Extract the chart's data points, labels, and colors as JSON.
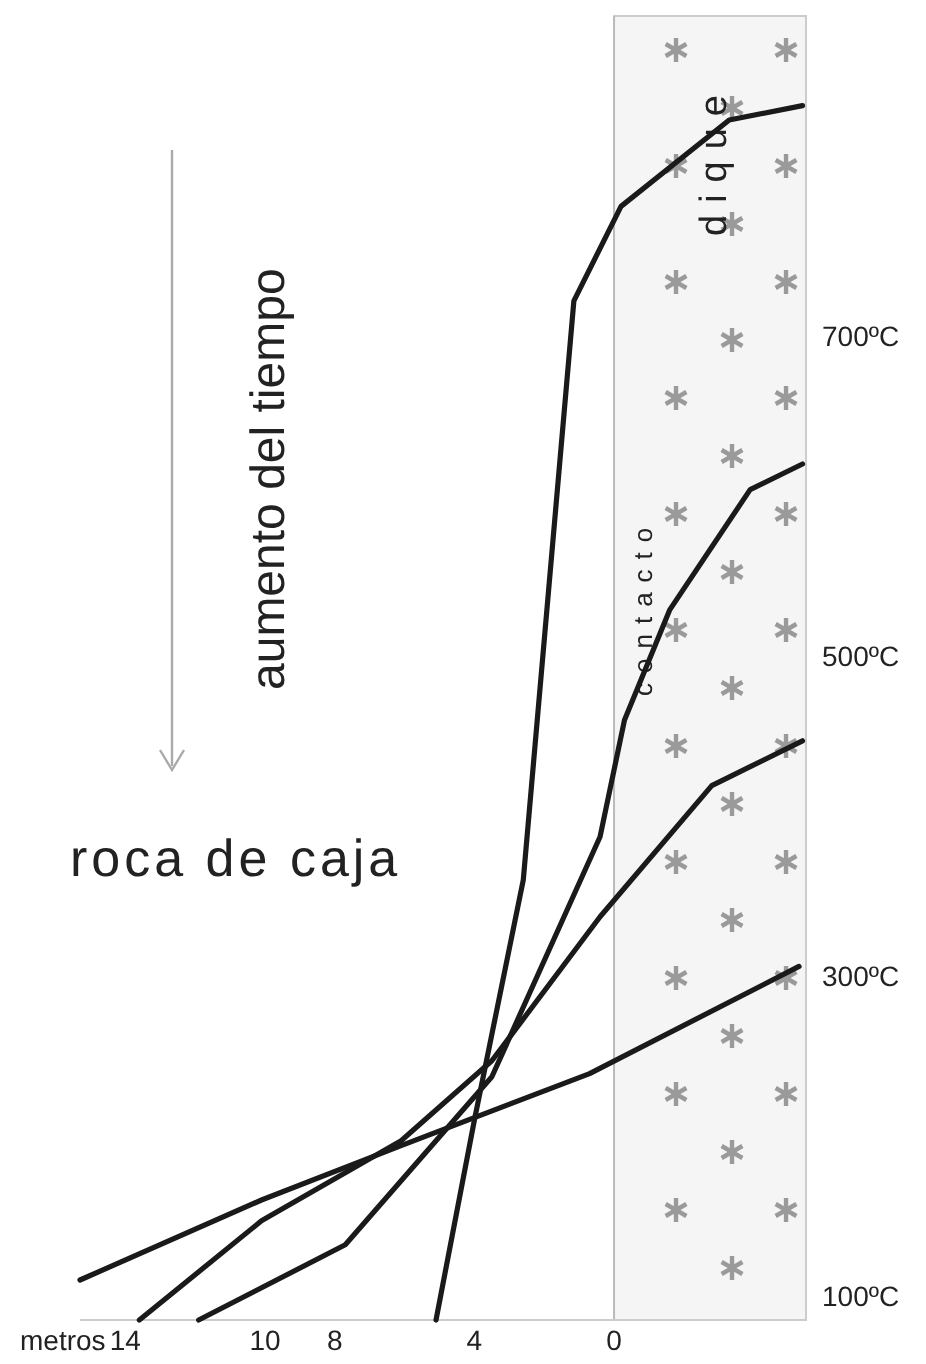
{
  "chart_data": {
    "type": "line",
    "xlabel": "metros",
    "xlim": [
      15.3,
      -5.5
    ],
    "xticks": [
      14,
      10,
      8,
      4,
      0
    ],
    "ylim": [
      85,
      900
    ],
    "yticks": [
      {
        "value": 100,
        "label": "100ºC"
      },
      {
        "value": 300,
        "label": "300ºC"
      },
      {
        "value": 500,
        "label": "500ºC"
      },
      {
        "value": 700,
        "label": "700ºC"
      }
    ],
    "grid": false,
    "marker": "none",
    "line_style": "solid",
    "series": [
      {
        "color": "#1a1a1a",
        "x": [
          15.3,
          10.1,
          6.1,
          0.7,
          -5.3
        ],
        "values": [
          110,
          160,
          194,
          239,
          306
        ]
      },
      {
        "color": "#1a1a1a",
        "x": [
          13.6,
          10.1,
          6.1,
          3.5,
          0.4,
          -2.8,
          -5.4
        ],
        "values": [
          85,
          147,
          197,
          247,
          337,
          419,
          447
        ]
      },
      {
        "color": "#1a1a1a",
        "x": [
          11.9,
          7.7,
          3.5,
          0.4,
          -0.3,
          -1.6,
          -3.9,
          -5.4
        ],
        "values": [
          85,
          132,
          237,
          387,
          460,
          529,
          604,
          620
        ]
      },
      {
        "color": "#1a1a1a",
        "x": [
          5.1,
          4.0,
          2.6,
          1.15,
          -0.2,
          -3.3,
          -5.4
        ],
        "values": [
          85,
          210,
          360,
          722,
          781,
          835,
          844
        ]
      }
    ],
    "bands": [
      {
        "axis": "x",
        "from": 0,
        "to": -5.5,
        "label": "dique",
        "color": "#f5f5f5"
      }
    ],
    "ref_lines": [
      {
        "axis": "x",
        "value": 0,
        "label": "contacto",
        "color": "#bbbbbb"
      }
    ],
    "annotations": [
      "aumento del tiempo",
      "roca de caja"
    ]
  }
}
